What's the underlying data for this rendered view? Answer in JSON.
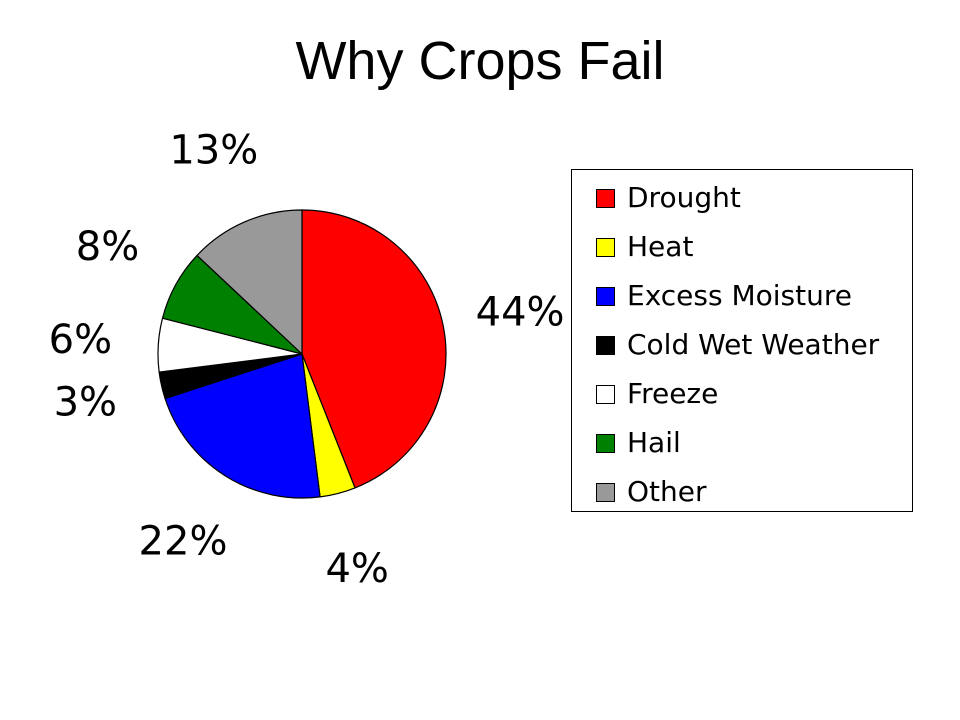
{
  "title": "Why Crops Fail",
  "chart_data": {
    "type": "pie",
    "title": "Why Crops Fail",
    "start_angle_deg": 0,
    "direction": "clockwise",
    "legend_position": "right",
    "slices": [
      {
        "label": "Drought",
        "value": 44,
        "display": "44%",
        "color": "#ff0000"
      },
      {
        "label": "Heat",
        "value": 4,
        "display": "4%",
        "color": "#ffff00"
      },
      {
        "label": "Excess Moisture",
        "value": 22,
        "display": "22%",
        "color": "#0000ff"
      },
      {
        "label": "Cold Wet Weather",
        "value": 3,
        "display": "3%",
        "color": "#000000"
      },
      {
        "label": "Freeze",
        "value": 6,
        "display": "6%",
        "color": "#ffffff"
      },
      {
        "label": "Hail",
        "value": 8,
        "display": "8%",
        "color": "#008000"
      },
      {
        "label": "Other",
        "value": 13,
        "display": "13%",
        "color": "#999999"
      }
    ]
  }
}
